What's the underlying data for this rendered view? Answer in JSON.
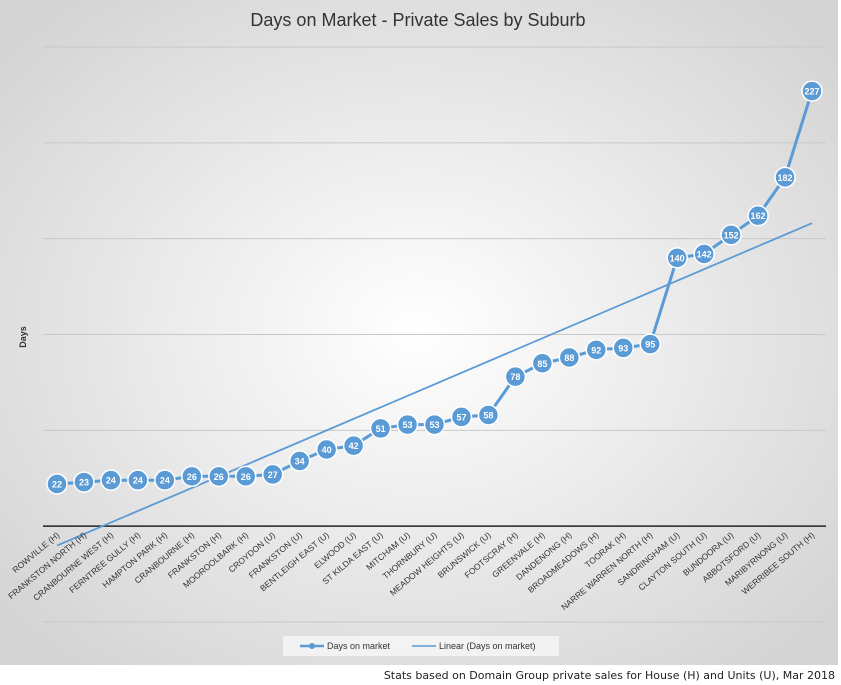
{
  "chart_data": {
    "type": "line",
    "title": "Days on Market - Private Sales by Suburb",
    "xlabel": "",
    "ylabel": "Days",
    "categories": [
      "ROWVILLE (H)",
      "FRANKSTON NORTH (H)",
      "CRANBOURNE WEST (H)",
      "FERNTREE GULLY (H)",
      "HAMPTON PARK (H)",
      "CRANBOURNE (H)",
      "FRANKSTON (H)",
      "MOOROOLBARK (H)",
      "CROYDON (U)",
      "FRANKSTON (U)",
      "BENTLEIGH EAST (U)",
      "ELWOOD (U)",
      "ST KILDA EAST (U)",
      "MITCHAM (U)",
      "THORNBURY (U)",
      "MEADOW HEIGHTS (U)",
      "BRUNSWICK (U)",
      "FOOTSCRAY (H)",
      "GREENVALE (H)",
      "DANDENONG (H)",
      "BROADMEADOWS (H)",
      "TOORAK (H)",
      "NARRE WARREN NORTH (H)",
      "SANDRINGHAM (U)",
      "CLAYTON SOUTH (U)",
      "BUNDOORA (U)",
      "ABBOTSFORD (U)",
      "MARIBYRNONG (U)",
      "WERRIBEE SOUTH (H)"
    ],
    "series": [
      {
        "name": "Days on market",
        "values": [
          22,
          23,
          24,
          24,
          24,
          26,
          26,
          26,
          27,
          34,
          40,
          42,
          51,
          53,
          53,
          57,
          58,
          78,
          85,
          88,
          92,
          93,
          95,
          140,
          142,
          152,
          162,
          182,
          227
        ],
        "color": "#5b9bd5"
      },
      {
        "name": "Linear (Days on market)",
        "type": "trendline",
        "color": "#5b9bd5"
      }
    ],
    "ylim": [
      -50,
      250
    ],
    "grid": true,
    "data_labels": true,
    "legend": "bottom",
    "footnote": "Stats based on Domain Group private sales for House (H) and Units (U), Mar 2018"
  }
}
